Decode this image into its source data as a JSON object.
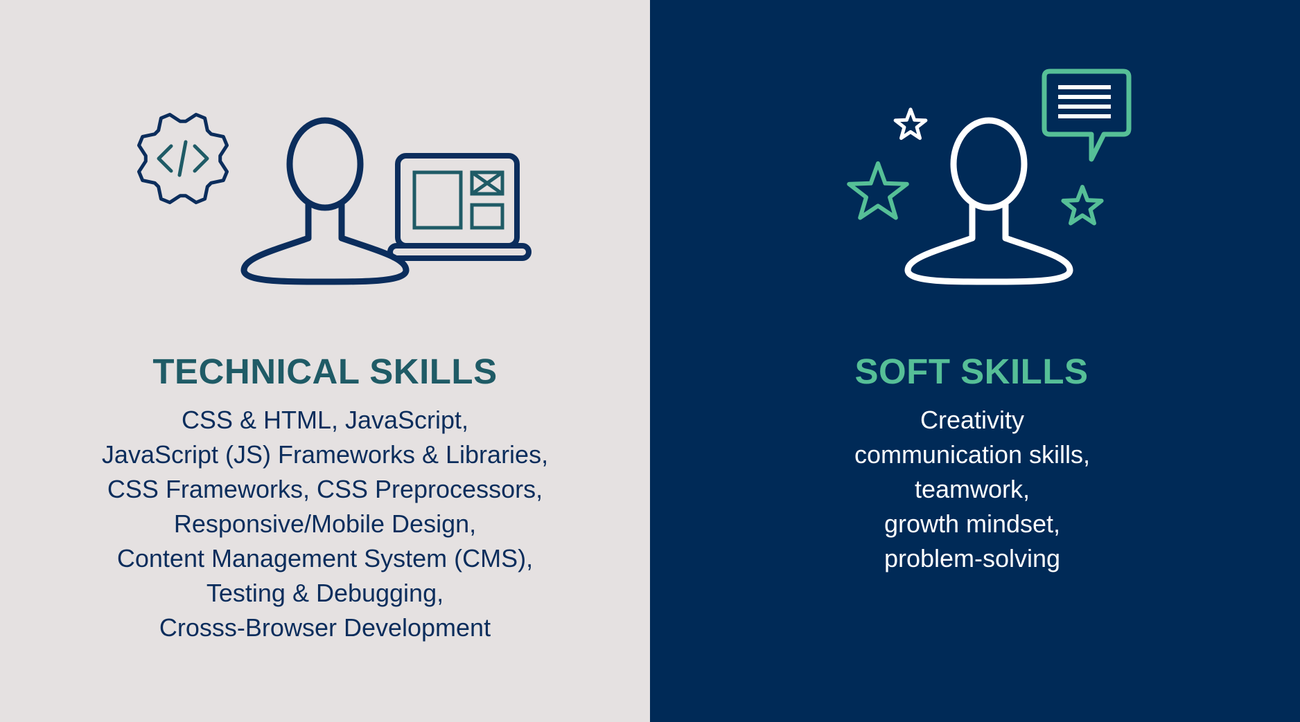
{
  "colors": {
    "left_background": "#E5E1E1",
    "right_background": "#002A57",
    "navy": "#0B2D5C",
    "teal": "#1F5B66",
    "mint": "#56BF97",
    "white": "#FFFFFF"
  },
  "technical": {
    "heading": "TECHNICAL SKILLS",
    "lines": [
      "CSS & HTML, JavaScript,",
      "JavaScript (JS) Frameworks & Libraries,",
      "CSS Frameworks, CSS Preprocessors,",
      "Responsive/Mobile Design,",
      "Content Management System (CMS),",
      "Testing & Debugging,",
      "Crosss-Browser Development"
    ],
    "icons": [
      "code-gear-icon",
      "person-icon",
      "laptop-wireframe-icon"
    ]
  },
  "soft": {
    "heading": "SOFT SKILLS",
    "lines": [
      "Creativity",
      "communication skills,",
      "teamwork,",
      "growth mindset,",
      "problem-solving"
    ],
    "icons": [
      "person-icon",
      "speech-bubble-icon",
      "star-icon",
      "star-icon",
      "star-icon"
    ]
  }
}
